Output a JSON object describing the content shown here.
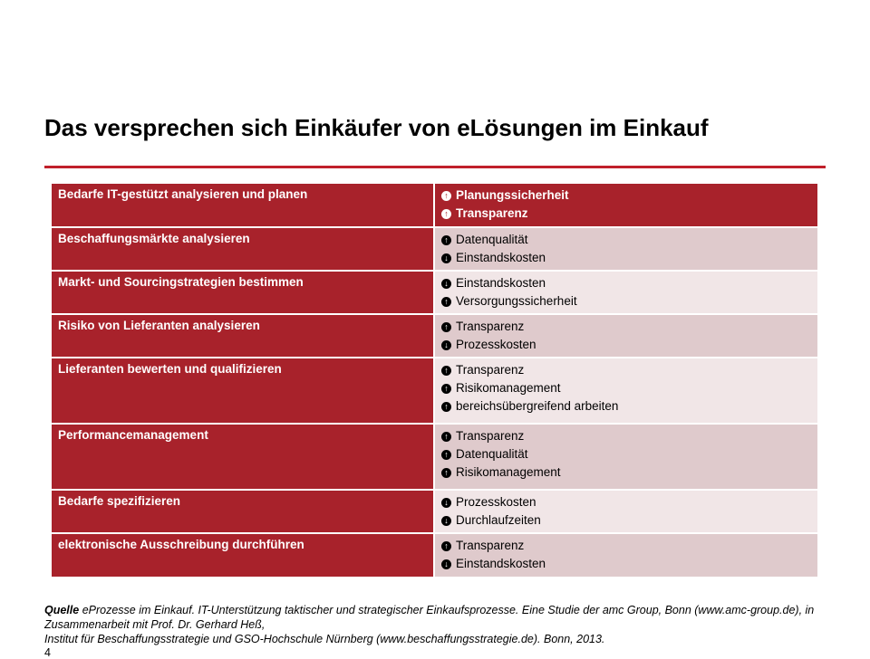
{
  "title": "Das versprechen sich Einkäufer von eLösungen im Einkauf",
  "rows": [
    {
      "label": "Bedarfe IT-gestützt analysieren und planen",
      "items": [
        {
          "dir": "up",
          "text": "Planungssicherheit"
        },
        {
          "dir": "up",
          "text": "Transparenz"
        }
      ]
    },
    {
      "label": "Beschaffungsmärkte analysieren",
      "items": [
        {
          "dir": "up",
          "text": "Datenqualität"
        },
        {
          "dir": "down",
          "text": "Einstandskosten"
        }
      ]
    },
    {
      "label": "Markt- und Sourcingstrategien bestimmen",
      "items": [
        {
          "dir": "down",
          "text": "Einstandskosten"
        },
        {
          "dir": "up",
          "text": "Versorgungssicherheit"
        }
      ]
    },
    {
      "label": "Risiko von Lieferanten analysieren",
      "items": [
        {
          "dir": "up",
          "text": "Transparenz"
        },
        {
          "dir": "down",
          "text": "Prozesskosten"
        }
      ]
    },
    {
      "label": "Lieferanten bewerten und qualifizieren",
      "items": [
        {
          "dir": "up",
          "text": "Transparenz"
        },
        {
          "dir": "up",
          "text": "Risikomanagement"
        },
        {
          "dir": "up",
          "text": "bereichsübergreifend arbeiten"
        }
      ]
    },
    {
      "label": "Performancemanagement",
      "items": [
        {
          "dir": "up",
          "text": "Transparenz"
        },
        {
          "dir": "up",
          "text": "Datenqualität"
        },
        {
          "dir": "up",
          "text": "Risikomanagement"
        }
      ]
    },
    {
      "label": "Bedarfe spezifizieren",
      "items": [
        {
          "dir": "down",
          "text": "Prozesskosten"
        },
        {
          "dir": "down",
          "text": "Durchlaufzeiten"
        }
      ]
    },
    {
      "label": "elektronische Ausschreibung durchführen",
      "items": [
        {
          "dir": "up",
          "text": "Transparenz"
        },
        {
          "dir": "down",
          "text": "Einstandskosten"
        }
      ]
    }
  ],
  "source": {
    "label": "Quelle",
    "text": " eProzesse im Einkauf. IT-Unterstützung taktischer und strategischer Einkaufsprozesse. Eine Studie der amc Group, Bonn (www.amc-group.de), in Zusammenarbeit mit Prof. Dr. Gerhard Heß,",
    "text2": "Institut für Beschaffungsstrategie und GSO-Hochschule Nürnberg (www.beschaffungsstrategie.de). Bonn, 2013."
  },
  "page_number": "4",
  "colors": {
    "accent": "#a8222b",
    "row_pink": "#dfcacc",
    "row_light": "#f1e6e7"
  }
}
